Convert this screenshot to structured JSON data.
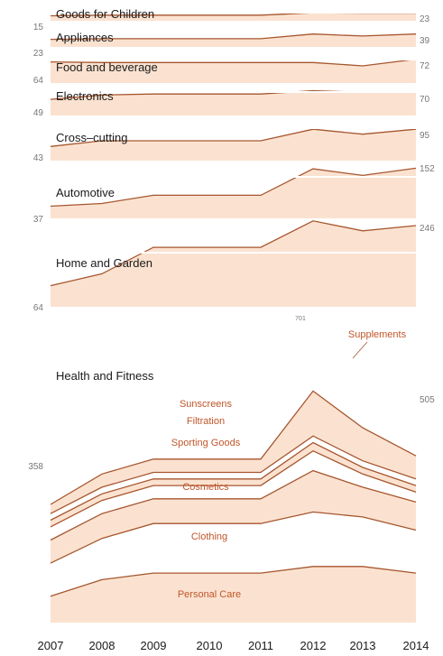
{
  "chart_data": {
    "type": "area",
    "x": [
      2007,
      2008,
      2009,
      2010,
      2011,
      2012,
      2013,
      2014
    ],
    "x_tick_labels": [
      "2007",
      "2008",
      "2009",
      "2010",
      "2011",
      "2012",
      "2013",
      "2014"
    ],
    "grid": false,
    "series": [
      {
        "name": "Goods for Children",
        "start_label": "15",
        "end_label": "23",
        "values": [
          15,
          17,
          17,
          17,
          17,
          24,
          23,
          23
        ]
      },
      {
        "name": "Appliances",
        "start_label": "23",
        "end_label": "39",
        "values": [
          23,
          25,
          25,
          25,
          25,
          39,
          33,
          39
        ]
      },
      {
        "name": "Food and beverage",
        "start_label": "64",
        "end_label": "72",
        "values": [
          64,
          62,
          62,
          62,
          62,
          62,
          52,
          72
        ]
      },
      {
        "name": "Electronics",
        "start_label": "49",
        "end_label": "70",
        "values": [
          49,
          62,
          65,
          65,
          65,
          75,
          70,
          70
        ]
      },
      {
        "name": "Cross–cutting",
        "start_label": "43",
        "end_label": "95",
        "values": [
          43,
          60,
          60,
          60,
          60,
          95,
          80,
          95
        ]
      },
      {
        "name": "Automotive",
        "start_label": "37",
        "end_label": "152",
        "values": [
          37,
          45,
          70,
          70,
          70,
          150,
          130,
          152
        ]
      },
      {
        "name": "Home and Garden",
        "start_label": "64",
        "end_label": "246",
        "values": [
          64,
          100,
          180,
          180,
          180,
          260,
          230,
          246
        ]
      },
      {
        "name": "Health and Fitness",
        "start_label": "358",
        "end_label": "505",
        "peak_label": "701",
        "subseries": [
          {
            "name": "Personal Care",
            "values": [
              80,
              130,
              150,
              150,
              150,
              170,
              170,
              150
            ]
          },
          {
            "name": "Clothing",
            "values": [
              100,
              125,
              150,
              150,
              150,
              165,
              150,
              130
            ]
          },
          {
            "name": "Cosmetics",
            "values": [
              70,
              75,
              75,
              75,
              75,
              125,
              90,
              85
            ]
          },
          {
            "name": "Sporting Goods",
            "values": [
              40,
              40,
              40,
              40,
              40,
              60,
              40,
              30
            ]
          },
          {
            "name": "Filtration",
            "values": [
              20,
              20,
              20,
              20,
              20,
              25,
              20,
              20
            ]
          },
          {
            "name": "Sunscreens",
            "values": [
              20,
              20,
              20,
              20,
              20,
              20,
              20,
              20
            ]
          },
          {
            "name": "Supplements",
            "values": [
              28,
              40,
              40,
              40,
              40,
              136,
              100,
              70
            ]
          }
        ]
      }
    ]
  }
}
